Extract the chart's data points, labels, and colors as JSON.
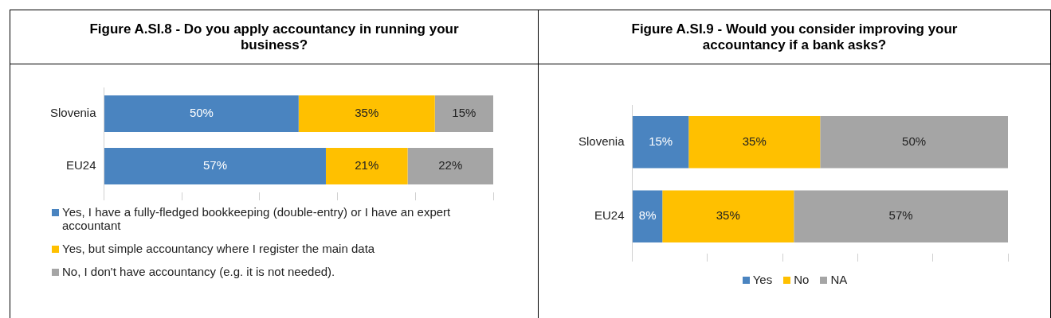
{
  "chart_data": [
    {
      "type": "bar",
      "orientation": "horizontal",
      "stacked": true,
      "title": "Figure A.SI.8 - Do you apply accountancy in running your business?",
      "categories": [
        "Slovenia",
        "EU24"
      ],
      "xlim": [
        0,
        100
      ],
      "tick_labels": "y",
      "grid": false,
      "legend": "bottom",
      "series": [
        {
          "name": "Yes, I have a fully-fledged bookkeeping (double-entry) or I have an expert accountant",
          "color": "#4a84c0",
          "values": [
            50,
            57
          ],
          "value_labels": [
            "50%",
            "57%"
          ]
        },
        {
          "name": "Yes, but simple accountancy where I register the main data",
          "color": "#ffc000",
          "values": [
            35,
            21
          ],
          "value_labels": [
            "35%",
            "21%"
          ]
        },
        {
          "name": "No, I don't have accountancy (e.g. it is not needed).",
          "color": "#a5a5a5",
          "values": [
            15,
            22
          ],
          "value_labels": [
            "15%",
            "22%"
          ]
        }
      ]
    },
    {
      "type": "bar",
      "orientation": "horizontal",
      "stacked": true,
      "title": "Figure A.SI.9 - Would you consider improving your accountancy if a bank asks?",
      "categories": [
        "Slovenia",
        "EU24"
      ],
      "xlim": [
        0,
        100
      ],
      "tick_labels": "y",
      "grid": false,
      "legend": "bottom",
      "series": [
        {
          "name": "Yes",
          "color": "#4a84c0",
          "values": [
            15,
            8
          ],
          "value_labels": [
            "15%",
            "8%"
          ]
        },
        {
          "name": "No",
          "color": "#ffc000",
          "values": [
            35,
            35
          ],
          "value_labels": [
            "35%",
            "35%"
          ]
        },
        {
          "name": "NA",
          "color": "#a5a5a5",
          "values": [
            50,
            57
          ],
          "value_labels": [
            "50%",
            "57%"
          ]
        }
      ]
    }
  ]
}
